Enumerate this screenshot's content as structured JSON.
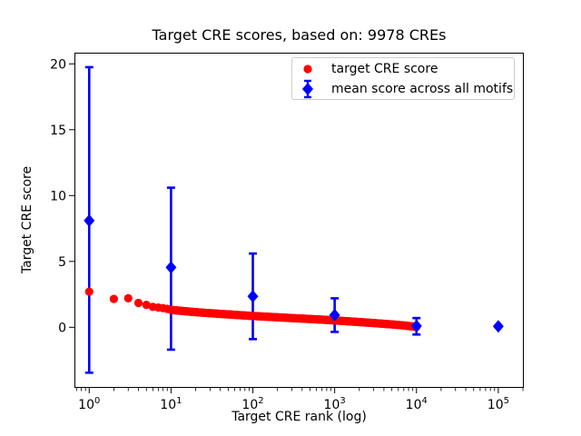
{
  "figure": {
    "title": "Target CRE scores, based on: 9978 CREs",
    "xlabel": "Target CRE rank (log)",
    "ylabel": "Target CRE score",
    "background": "#ffffff",
    "frame_color": "#000000"
  },
  "legend": {
    "items": [
      {
        "label": "target CRE score",
        "marker": "circle",
        "color": "#ff0000"
      },
      {
        "label": "mean score across all motifs",
        "marker": "diamond-errorbar",
        "color": "#0000ff"
      }
    ]
  },
  "chart_data": {
    "type": "scatter",
    "title": "Target CRE scores, based on: 9978 CREs",
    "xlabel": "Target CRE rank (log)",
    "ylabel": "Target CRE score",
    "x_scale": "log",
    "xlim": [
      0.66,
      205000
    ],
    "ylim": [
      -4.6,
      20.85
    ],
    "x_tick_exponents": [
      0,
      1,
      2,
      3,
      4,
      5
    ],
    "y_ticks": [
      0,
      5,
      10,
      15,
      20
    ],
    "grid": false,
    "legend_position": "upper right inside",
    "total_cres": 9978,
    "series": [
      {
        "name": "target CRE score",
        "marker": "circle",
        "color": "#ff0000",
        "dense_rank_range": [
          10,
          9978
        ],
        "points": [
          [
            1,
            2.7
          ],
          [
            2,
            2.15
          ],
          [
            3,
            2.2
          ],
          [
            4,
            1.85
          ],
          [
            5,
            1.7
          ],
          [
            6,
            1.55
          ],
          [
            7,
            1.5
          ],
          [
            8,
            1.45
          ],
          [
            9,
            1.4
          ],
          [
            10,
            1.32
          ],
          [
            15,
            1.22
          ],
          [
            20,
            1.15
          ],
          [
            30,
            1.07
          ],
          [
            50,
            0.98
          ],
          [
            70,
            0.92
          ],
          [
            100,
            0.86
          ],
          [
            150,
            0.8
          ],
          [
            200,
            0.76
          ],
          [
            300,
            0.7
          ],
          [
            500,
            0.63
          ],
          [
            700,
            0.58
          ],
          [
            1000,
            0.52
          ],
          [
            1500,
            0.45
          ],
          [
            2000,
            0.4
          ],
          [
            3000,
            0.32
          ],
          [
            5000,
            0.22
          ],
          [
            7000,
            0.14
          ],
          [
            9978,
            0.03
          ]
        ]
      },
      {
        "name": "mean score across all motifs",
        "marker": "diamond",
        "color": "#0000ff",
        "points": [
          {
            "x": 1,
            "y": 8.1,
            "lo": -3.45,
            "hi": 19.75
          },
          {
            "x": 10,
            "y": 4.55,
            "lo": -1.7,
            "hi": 10.6
          },
          {
            "x": 100,
            "y": 2.35,
            "lo": -0.9,
            "hi": 5.6
          },
          {
            "x": 1000,
            "y": 0.93,
            "lo": -0.35,
            "hi": 2.2
          },
          {
            "x": 10000,
            "y": 0.1,
            "lo": -0.55,
            "hi": 0.7
          },
          {
            "x": 100000,
            "y": 0.07,
            "lo": 0.03,
            "hi": 0.11
          }
        ]
      }
    ]
  }
}
